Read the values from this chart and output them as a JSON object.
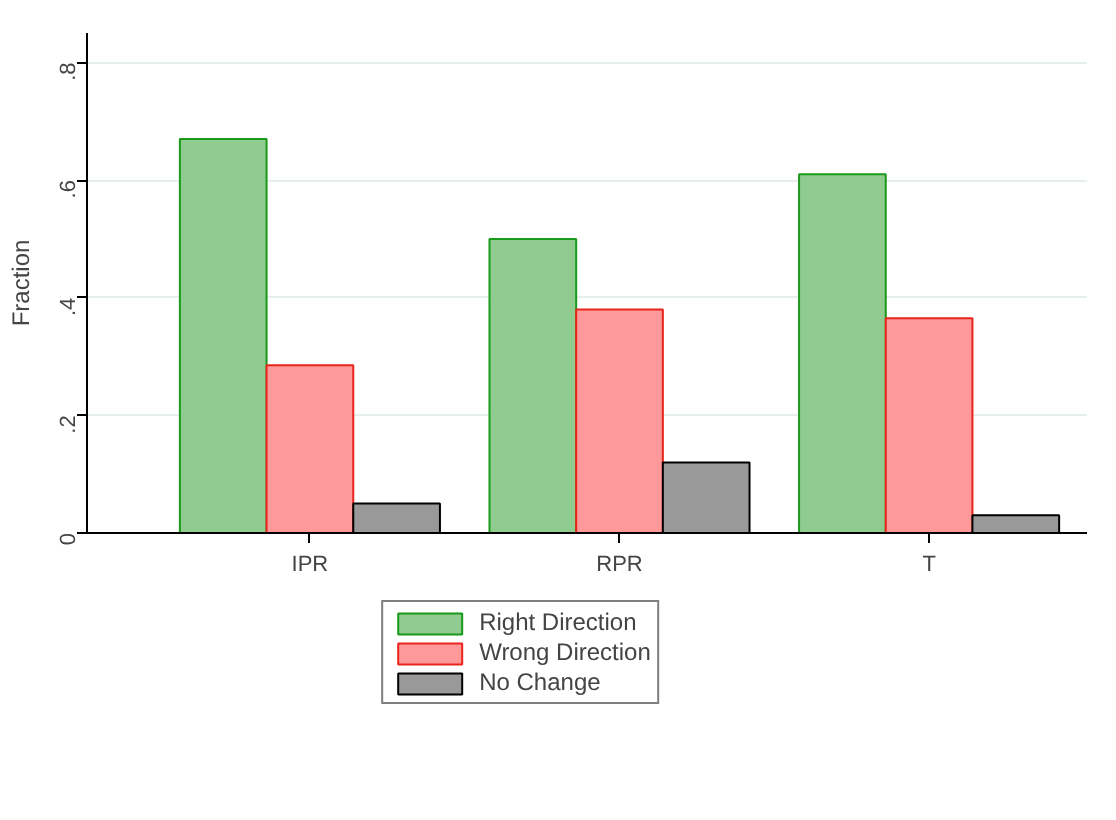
{
  "chart_data": {
    "type": "bar",
    "ylabel": "Fraction",
    "categories": [
      "IPR",
      "RPR",
      "T"
    ],
    "series": [
      {
        "name": "Right Direction",
        "color": "#90cb8f",
        "values": [
          0.67,
          0.5,
          0.61
        ]
      },
      {
        "name": "Wrong Direction",
        "color": "#ff9898",
        "values": [
          0.285,
          0.38,
          0.365
        ]
      },
      {
        "name": "No Change",
        "color": "#999999",
        "values": [
          0.05,
          0.12,
          0.03
        ]
      }
    ],
    "ylim": [
      0,
      0.85
    ],
    "yticks": [
      0,
      {
        "value": 0.2,
        "label": ".2"
      },
      {
        "value": 0.4,
        "label": ".4"
      },
      {
        "value": 0.6,
        "label": ".6"
      },
      {
        "value": 0.8,
        "label": ".8"
      }
    ],
    "grid": "y",
    "legend": "bottom"
  }
}
